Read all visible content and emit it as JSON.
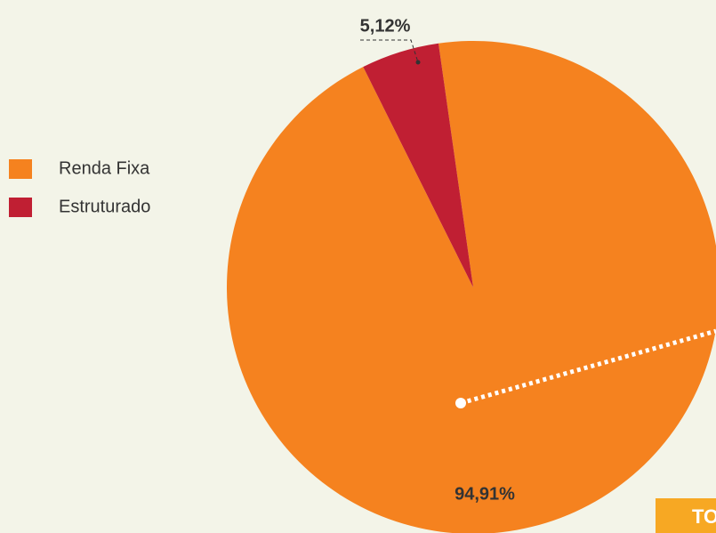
{
  "chart_data": {
    "type": "pie",
    "categories": [
      "Renda Fixa",
      "Estruturado"
    ],
    "values": [
      94.91,
      5.12
    ],
    "value_labels": [
      "94,91%",
      "5,12%"
    ],
    "colors": [
      "#f5821f",
      "#c01f33"
    ],
    "legend": "left",
    "annotations": [
      "TO"
    ]
  }
}
